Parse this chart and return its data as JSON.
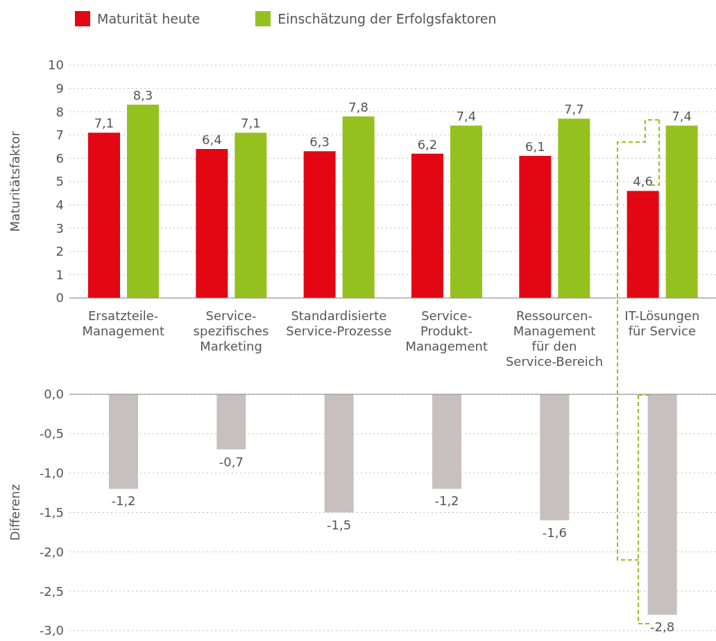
{
  "chart_data": [
    {
      "type": "bar",
      "ylabel": "Maturitätsfaktor",
      "categories": [
        "Ersatzteile-\nManagement",
        "Service-\nspezifisches\nMarketing",
        "Standardisierte\nService-Prozesse",
        "Service-\nProdukt-\nManagement",
        "Ressourcen-\nManagement\nfür den\nService-Bereich",
        "IT-Lösungen\nfür Service"
      ],
      "series": [
        {
          "name": "Maturität heute",
          "color": "#e30613",
          "values": [
            7.1,
            6.4,
            6.3,
            6.2,
            6.1,
            4.6
          ],
          "value_labels": [
            "7,1",
            "6,4",
            "6,3",
            "6,2",
            "6,1",
            "4,6"
          ]
        },
        {
          "name": "Einschätzung der Erfolgsfaktoren",
          "color": "#95c11f",
          "values": [
            8.3,
            7.1,
            7.8,
            7.4,
            7.7,
            7.4
          ],
          "value_labels": [
            "8,3",
            "7,1",
            "7,8",
            "7,4",
            "7,7",
            "7,4"
          ]
        }
      ],
      "ylim": [
        0,
        10
      ],
      "yticks": [
        0,
        1,
        2,
        3,
        4,
        5,
        6,
        7,
        8,
        9,
        10
      ],
      "grid": "y",
      "legend": "top left"
    },
    {
      "type": "bar",
      "ylabel": "Differenz",
      "categories": [
        null,
        null,
        null,
        null,
        null,
        null
      ],
      "series": [
        {
          "color": "#c8c0be",
          "values": [
            -1.2,
            -0.7,
            -1.5,
            -1.2,
            -1.6,
            -2.8
          ],
          "value_labels": [
            "-1,2",
            "-0,7",
            "-1,5",
            "-1,2",
            "-1,6",
            "-2,8"
          ]
        }
      ],
      "ylim": [
        -3,
        0
      ],
      "yticks": [
        {
          "value": 0,
          "label": "0,0"
        },
        {
          "value": -0.5,
          "label": "-0,5"
        },
        {
          "value": -1,
          "label": "-1,0"
        },
        {
          "value": -1.5,
          "label": "-1,5"
        },
        {
          "value": -2,
          "label": "-2,0"
        },
        {
          "value": -2.5,
          "label": "-2,5"
        },
        {
          "value": -3,
          "label": "-3,0"
        }
      ],
      "grid": "y",
      "tick_labels": "y"
    }
  ]
}
